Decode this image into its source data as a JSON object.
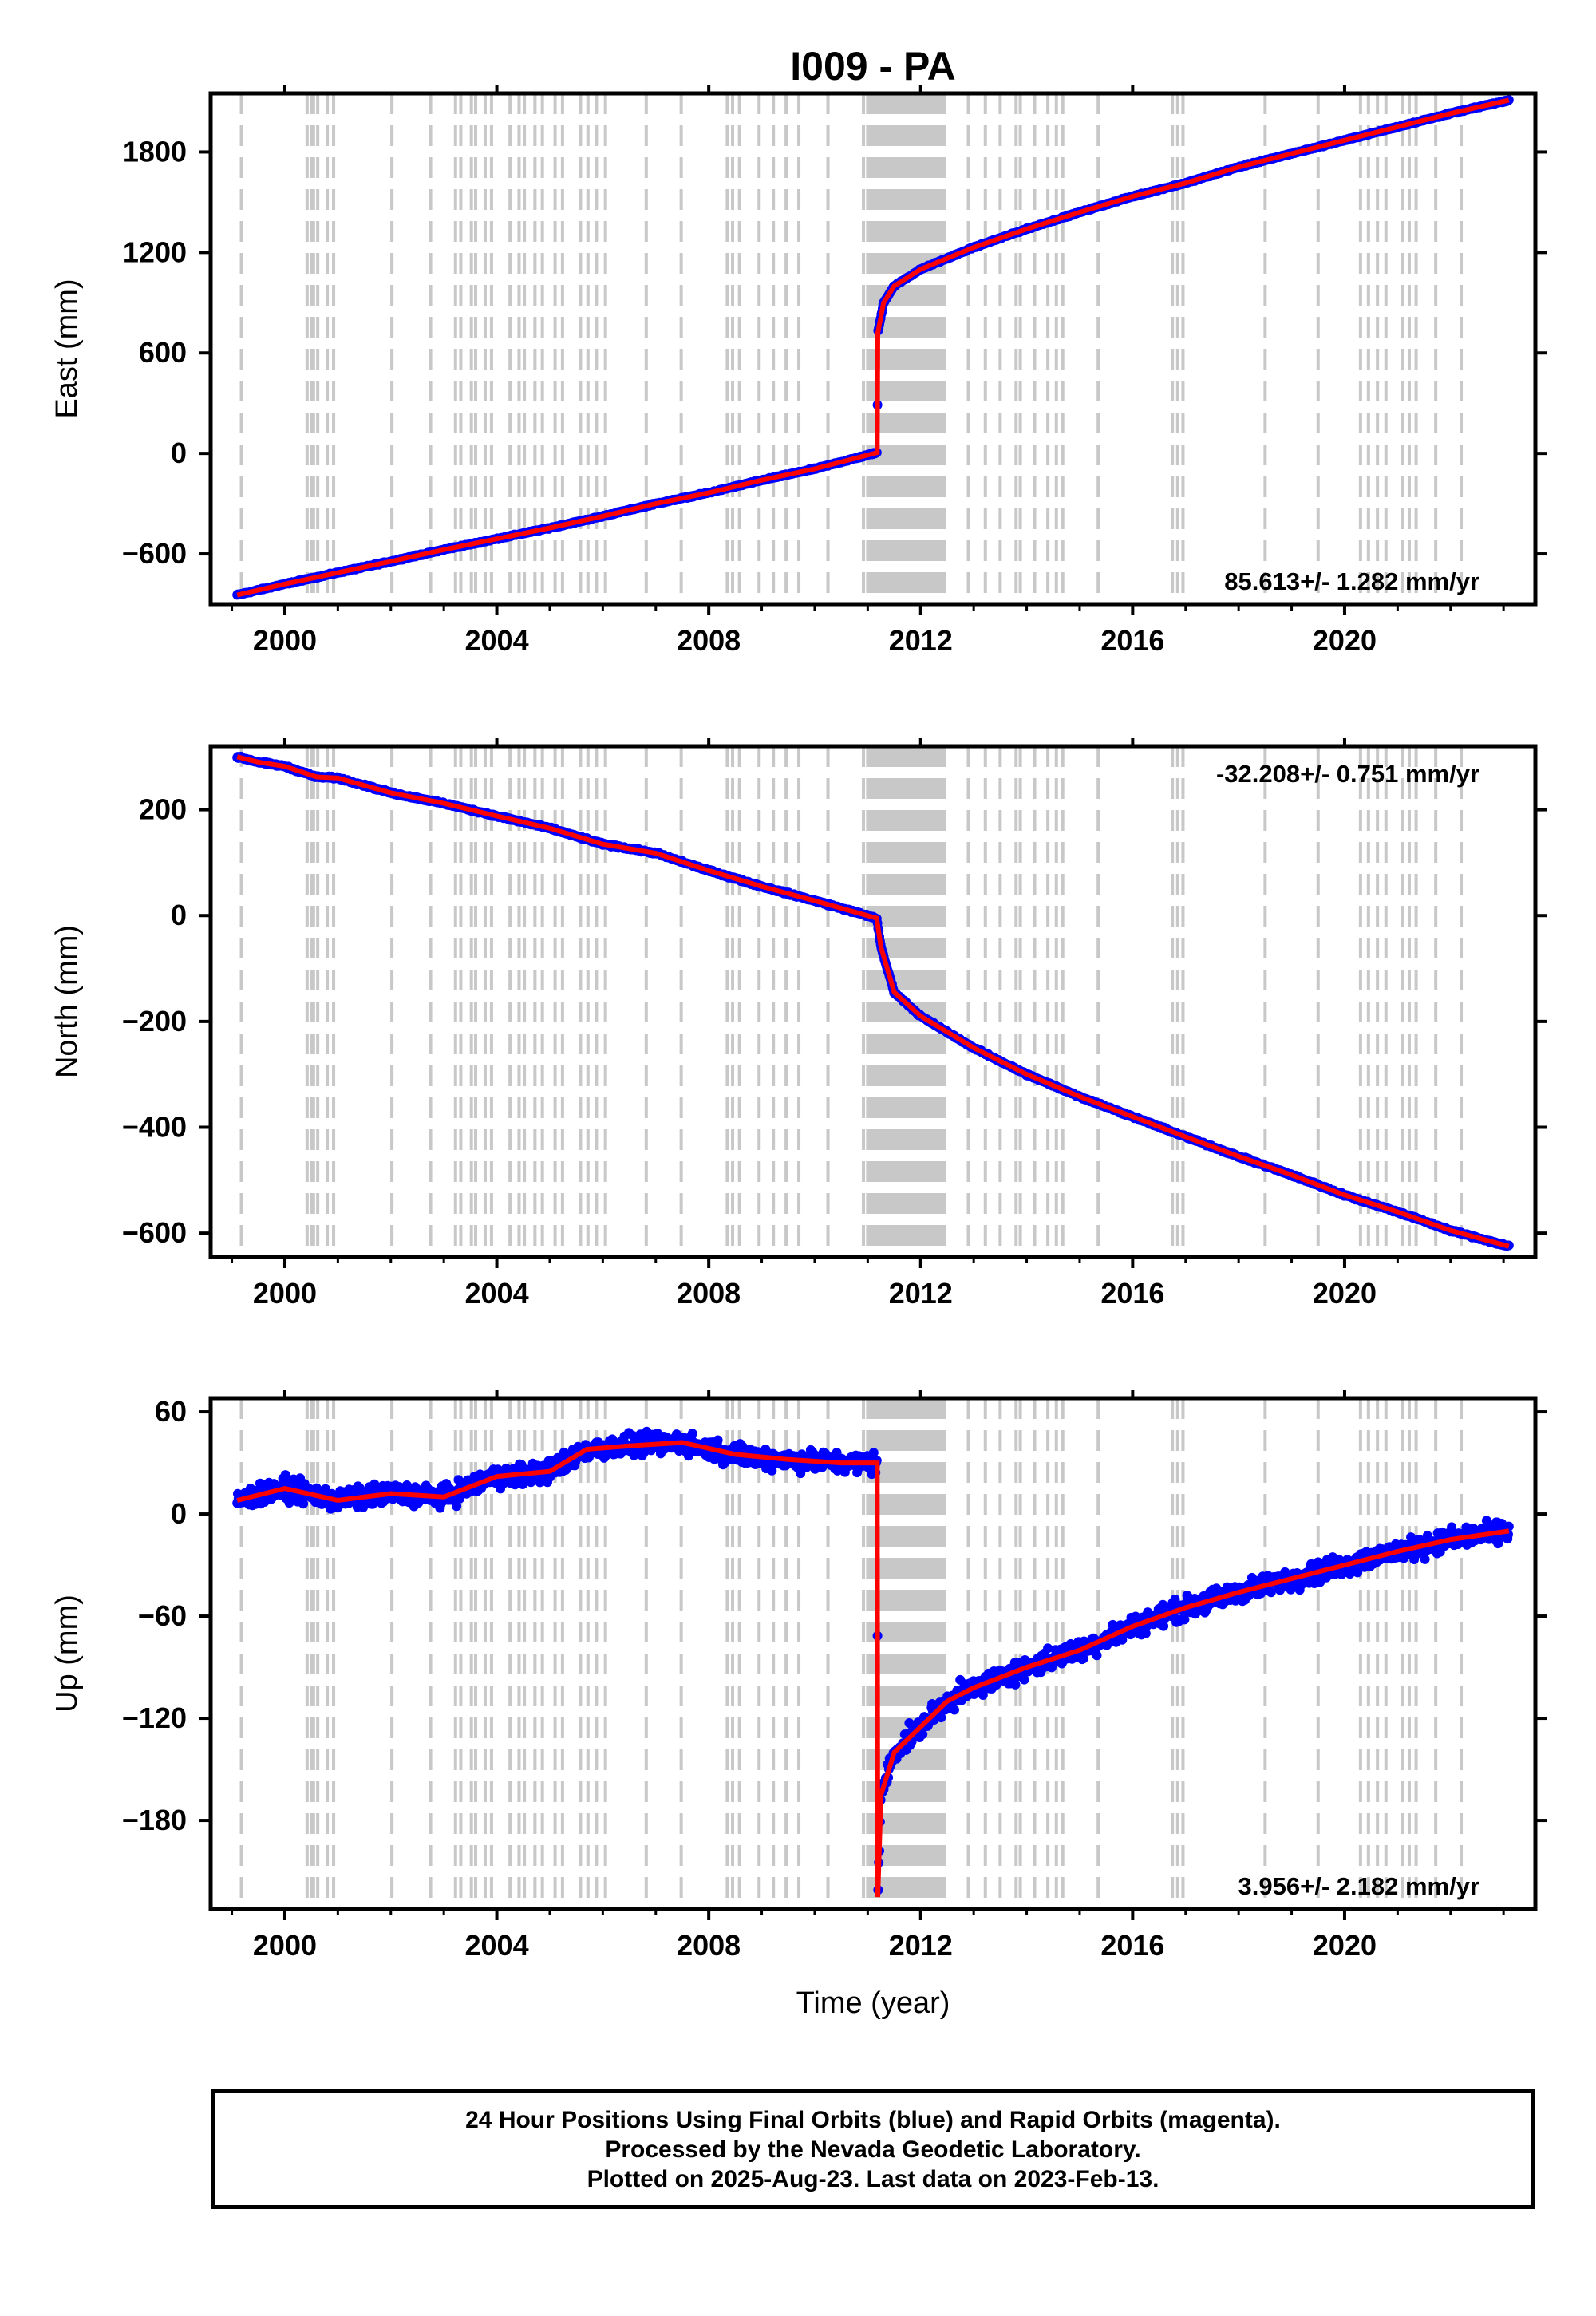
{
  "title": "I009 - PA",
  "footer": {
    "line1": "24 Hour Positions Using Final Orbits (blue) and Rapid Orbits (magenta).",
    "line2": "Processed by the Nevada Geodetic Laboratory.",
    "line3": "Plotted on 2025-Aug-23. Last data on 2023-Feb-13."
  },
  "colors": {
    "data_points": "#0000ff",
    "fit_line": "#ff0000",
    "event_lines": "#c8c8c8",
    "frame": "#000000"
  },
  "event_years": [
    1999.18,
    2000.42,
    2000.5,
    2000.54,
    2000.62,
    2000.8,
    2000.92,
    2002.02,
    2002.75,
    2003.22,
    2003.32,
    2003.52,
    2003.6,
    2003.78,
    2003.9,
    2004.25,
    2004.42,
    2004.52,
    2004.72,
    2004.86,
    2005.1,
    2005.24,
    2005.58,
    2005.72,
    2005.88,
    2006.05,
    2006.82,
    2007.48,
    2008.35,
    2008.45,
    2008.58,
    2008.95,
    2009.22,
    2009.46,
    2009.7,
    2010.25,
    2010.92,
    2011.0,
    2011.04,
    2011.08,
    2011.12,
    2011.16,
    2011.2,
    2011.24,
    2011.28,
    2011.32,
    2011.36,
    2011.4,
    2011.44,
    2011.48,
    2011.52,
    2011.56,
    2011.6,
    2011.64,
    2011.68,
    2011.72,
    2011.76,
    2011.8,
    2011.84,
    2011.88,
    2011.92,
    2011.96,
    2012.0,
    2012.05,
    2012.1,
    2012.15,
    2012.2,
    2012.25,
    2012.3,
    2012.35,
    2012.4,
    2012.45,
    2012.9,
    2013.22,
    2013.5,
    2013.8,
    2013.88,
    2014.15,
    2014.4,
    2014.56,
    2014.68,
    2015.35,
    2016.75,
    2016.85,
    2016.95,
    2018.5,
    2019.5,
    2020.3,
    2020.45,
    2020.62,
    2020.78,
    2021.1,
    2021.22,
    2021.35,
    2021.72,
    2022.2
  ],
  "chart_data": [
    {
      "type": "scatter",
      "component": "east",
      "ylabel": "East (mm)",
      "xlim": [
        1998.6,
        2023.6
      ],
      "ylim": [
        -900,
        2150
      ],
      "xticks": [
        2000,
        2004,
        2008,
        2012,
        2016,
        2020
      ],
      "yticks": [
        -600,
        0,
        600,
        1200,
        1800
      ],
      "rate_label": "85.613+/- 1.282 mm/yr",
      "rate_position": "bottom-right",
      "series": [
        {
          "values": [
            [
              1999.1,
              -845
            ],
            [
              2000.0,
              -780
            ],
            [
              2001.0,
              -712
            ],
            [
              2002.0,
              -645
            ],
            [
              2003.0,
              -575
            ],
            [
              2004.0,
              -510
            ],
            [
              2005.0,
              -445
            ],
            [
              2006.0,
              -375
            ],
            [
              2007.0,
              -300
            ],
            [
              2008.0,
              -235
            ],
            [
              2009.0,
              -160
            ],
            [
              2010.0,
              -92
            ],
            [
              2011.18,
              5
            ],
            [
              2011.19,
              720
            ],
            [
              2011.3,
              900
            ],
            [
              2011.5,
              1000
            ],
            [
              2012.0,
              1100
            ],
            [
              2013.0,
              1230
            ],
            [
              2014.0,
              1340
            ],
            [
              2015.0,
              1440
            ],
            [
              2016.0,
              1535
            ],
            [
              2017.0,
              1615
            ],
            [
              2018.0,
              1710
            ],
            [
              2019.0,
              1790
            ],
            [
              2020.0,
              1870
            ],
            [
              2021.0,
              1950
            ],
            [
              2022.0,
              2030
            ],
            [
              2023.1,
              2110
            ]
          ]
        }
      ]
    },
    {
      "type": "scatter",
      "component": "north",
      "ylabel": "North (mm)",
      "xlim": [
        1998.6,
        2023.6
      ],
      "ylim": [
        -645,
        320
      ],
      "xticks": [
        2000,
        2004,
        2008,
        2012,
        2016,
        2020
      ],
      "yticks": [
        -600,
        -400,
        -200,
        0,
        200
      ],
      "rate_label": "-32.208+/- 0.751 mm/yr",
      "rate_position": "top-right",
      "series": [
        {
          "values": [
            [
              1999.1,
              300
            ],
            [
              1999.5,
              290
            ],
            [
              2000.0,
              282
            ],
            [
              2000.6,
              262
            ],
            [
              2001.0,
              260
            ],
            [
              2002.0,
              232
            ],
            [
              2003.0,
              212
            ],
            [
              2004.0,
              188
            ],
            [
              2005.0,
              165
            ],
            [
              2006.0,
              135
            ],
            [
              2007.0,
              118
            ],
            [
              2008.0,
              85
            ],
            [
              2009.0,
              55
            ],
            [
              2010.0,
              28
            ],
            [
              2011.17,
              -5
            ],
            [
              2011.25,
              -60
            ],
            [
              2011.5,
              -145
            ],
            [
              2012.0,
              -190
            ],
            [
              2013.0,
              -250
            ],
            [
              2014.0,
              -300
            ],
            [
              2015.0,
              -342
            ],
            [
              2016.0,
              -380
            ],
            [
              2017.0,
              -418
            ],
            [
              2018.0,
              -455
            ],
            [
              2019.0,
              -490
            ],
            [
              2020.0,
              -528
            ],
            [
              2021.0,
              -560
            ],
            [
              2022.0,
              -595
            ],
            [
              2023.1,
              -625
            ]
          ]
        }
      ]
    },
    {
      "type": "scatter",
      "component": "up",
      "xlabel": "Time (year)",
      "ylabel": "Up (mm)",
      "xlim": [
        1998.6,
        2023.6
      ],
      "ylim": [
        -232,
        68
      ],
      "xticks": [
        2000,
        2004,
        2008,
        2012,
        2016,
        2020
      ],
      "yticks": [
        -180,
        -120,
        -60,
        0,
        60
      ],
      "rate_label": "3.956+/- 2.182 mm/yr",
      "rate_position": "bottom-right",
      "series": [
        {
          "values": [
            [
              1999.1,
              8
            ],
            [
              2000.0,
              15
            ],
            [
              2001.0,
              8
            ],
            [
              2002.0,
              12
            ],
            [
              2003.0,
              10
            ],
            [
              2004.0,
              22
            ],
            [
              2005.0,
              25
            ],
            [
              2005.7,
              38
            ],
            [
              2006.5,
              40
            ],
            [
              2007.5,
              42
            ],
            [
              2008.5,
              35
            ],
            [
              2009.5,
              32
            ],
            [
              2010.5,
              30
            ],
            [
              2011.18,
              30
            ],
            [
              2011.19,
              -225
            ],
            [
              2011.25,
              -165
            ],
            [
              2011.5,
              -140
            ],
            [
              2012.0,
              -125
            ],
            [
              2012.5,
              -110
            ],
            [
              2013.0,
              -102
            ],
            [
              2014.0,
              -90
            ],
            [
              2015.0,
              -80
            ],
            [
              2016.0,
              -66
            ],
            [
              2017.0,
              -55
            ],
            [
              2018.0,
              -46
            ],
            [
              2019.0,
              -38
            ],
            [
              2020.0,
              -30
            ],
            [
              2021.0,
              -22
            ],
            [
              2022.0,
              -15
            ],
            [
              2023.1,
              -10
            ]
          ]
        }
      ]
    }
  ]
}
